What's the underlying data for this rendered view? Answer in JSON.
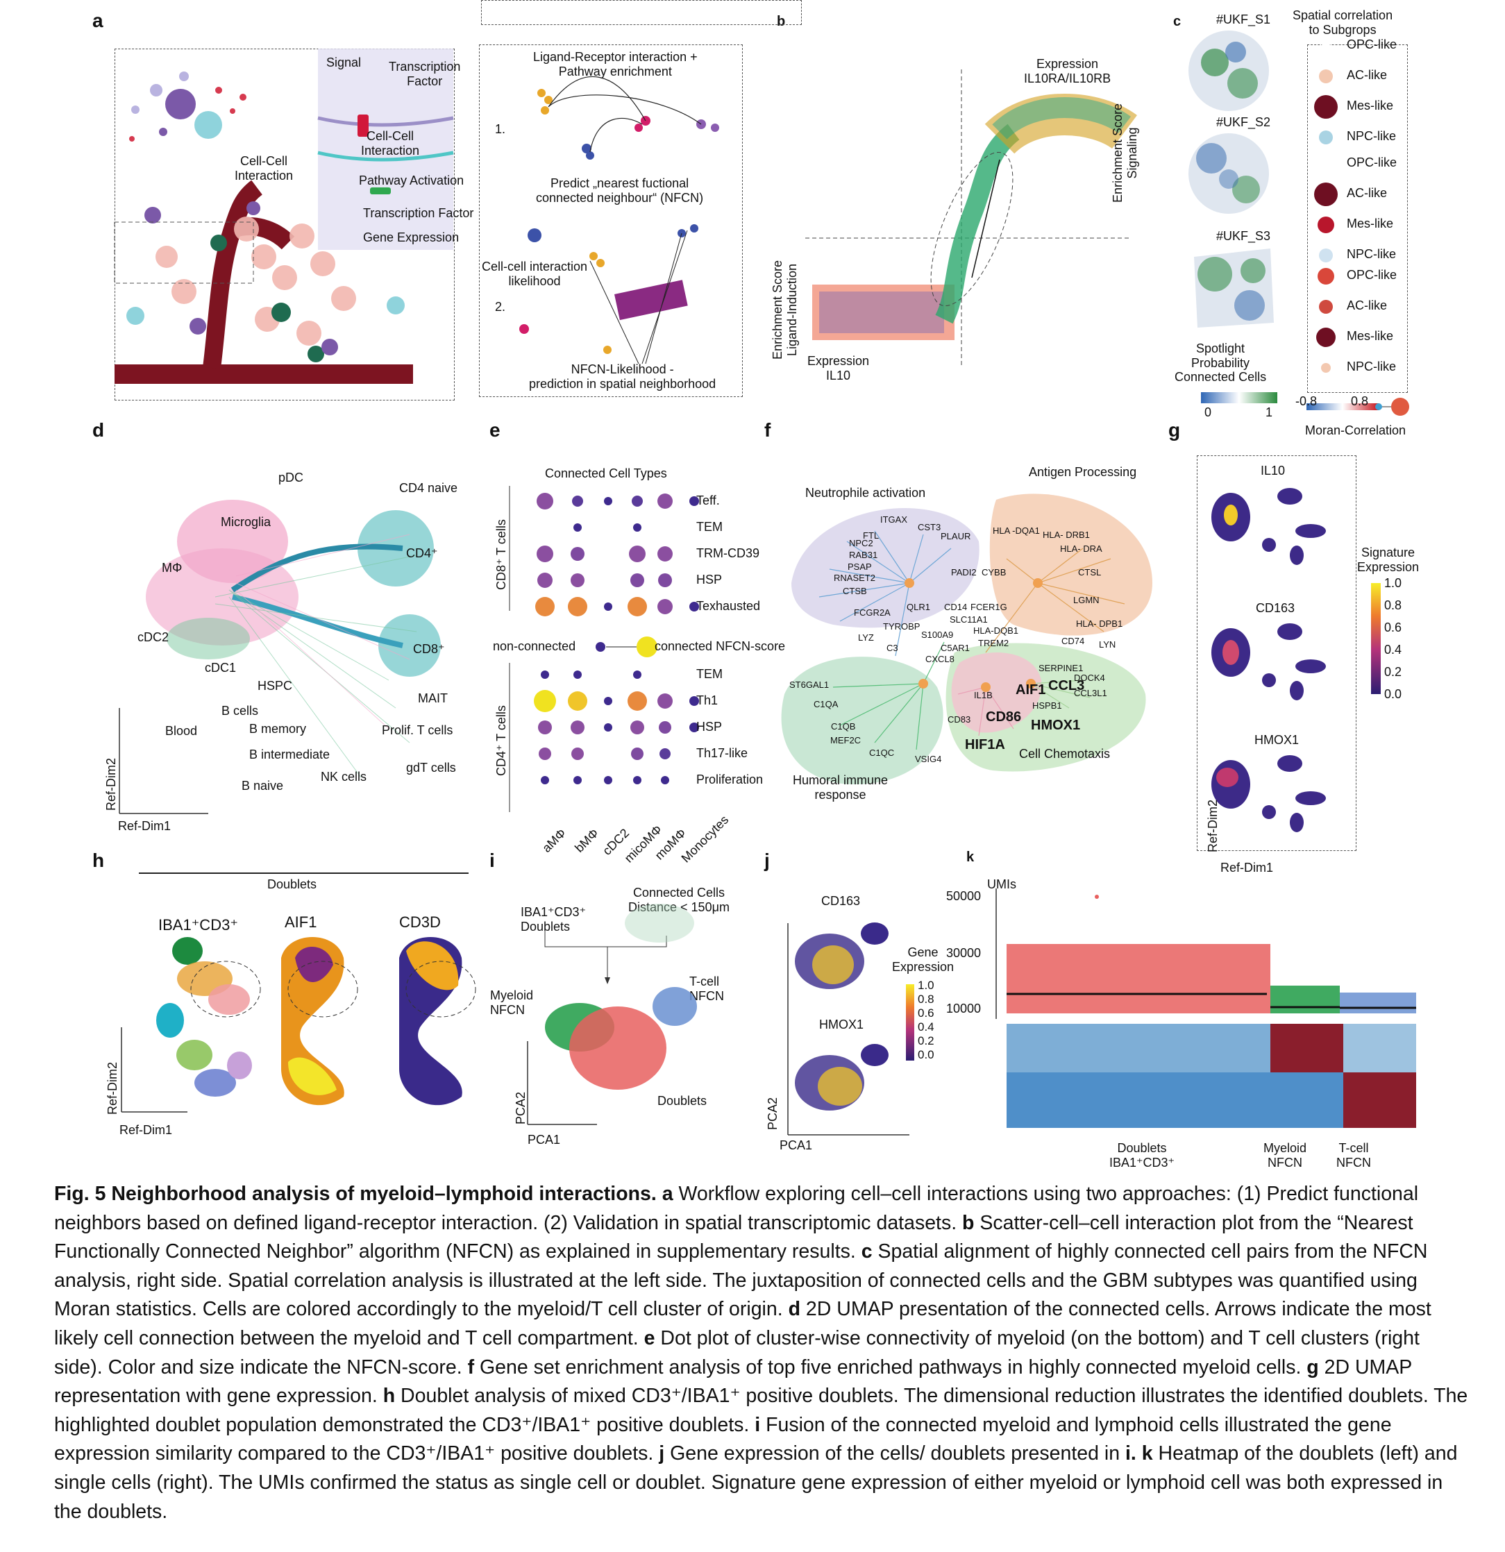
{
  "panel_letters": {
    "a": "a",
    "b": "b",
    "c": "c",
    "d": "d",
    "e": "e",
    "f": "f",
    "g": "g",
    "h": "h",
    "i": "i",
    "j": "j",
    "k": "k"
  },
  "panel_a": {
    "signal": "Signal",
    "transcription_factor_1": "Transcription\nFactor",
    "cell_cell_interaction_inner": "Cell-Cell\nInteraction",
    "pathway_activation": "Pathway Activation",
    "transcription_factor_2": "Transcription Factor",
    "gene_expression": "Gene Expression",
    "cell_cell_interaction_left": "Cell-Cell\nInteraction",
    "lr_title": "Ligand-Receptor interaction +\nPathway enrichment",
    "step1": "1.",
    "predict": "Predict „nearest fuctional\nconnected neighbour“ (NFCN)",
    "likelihood": "Cell-cell interaction\nlikelihood",
    "step2": "2.",
    "nfcn_likelihood": "NFCN-Likelihood -\nprediction in spatial neighborhood"
  },
  "panel_b": {
    "expression_top": "Expression\nIL10RA/IL10RB",
    "enrichment_signaling": "Enrichment Score\nSignaling",
    "enrichment_ligand": "Enrichment Score\nLigand-Induction",
    "expression_il10": "Expression\nIL10"
  },
  "panel_c": {
    "samples": [
      "#UKF_S1",
      "#UKF_S2",
      "#UKF_S3"
    ],
    "legend_title": "Spatial correlation\nto Subgrops",
    "groups": [
      {
        "items": [
          {
            "label": "OPC-like",
            "color": "#ffffff"
          },
          {
            "label": "AC-like",
            "color": "#f3c8b0"
          },
          {
            "label": "Mes-like",
            "color": "#6e0f22"
          },
          {
            "label": "NPC-like",
            "color": "#a9d3e3"
          }
        ]
      },
      {
        "items": [
          {
            "label": "OPC-like",
            "color": "#ffffff"
          },
          {
            "label": "AC-like",
            "color": "#6e0f22"
          },
          {
            "label": "Mes-like",
            "color": "#b8162c"
          },
          {
            "label": "NPC-like",
            "color": "#cfe2f0"
          }
        ]
      },
      {
        "items": [
          {
            "label": "OPC-like",
            "color": "#d9473a"
          },
          {
            "label": "AC-like",
            "color": "#cf4a3f"
          },
          {
            "label": "Mes-like",
            "color": "#6e0f22"
          },
          {
            "label": "NPC-like",
            "color": "#f3c8b0"
          }
        ]
      }
    ],
    "spotlight": "Spotlight\nProbability\nConnected Cells",
    "scale_min": "0",
    "scale_max": "1",
    "moran_min": "-0.8",
    "moran_max": "0.8",
    "moran_label": "Moran-Correlation"
  },
  "panel_d": {
    "labels": {
      "pDC": "pDC",
      "cd4_naive": "CD4 naive",
      "microglia": "Microglia",
      "mphi": "MΦ",
      "cd4": "CD4⁺",
      "cd8": "CD8⁺",
      "cdc2": "cDC2",
      "cdc1": "cDC1",
      "hspc": "HSPC",
      "mait": "MAIT",
      "b_cells": "B cells",
      "blood": "Blood",
      "b_memory": "B memory",
      "prolif": "Prolif. T cells",
      "b_intermediate": "B intermediate",
      "gdt": "gdT cells",
      "nk": "NK cells",
      "b_naive": "B naive"
    },
    "axis_x": "Ref-Dim1",
    "axis_y": "Ref-Dim2"
  },
  "panel_e": {
    "title": "Connected Cell Types",
    "cd8_group": "CD8⁺ T cells",
    "cd4_group": "CD4⁺ T cells",
    "legend_left": "non-connected",
    "legend_right": "connected NFCN-score",
    "columns": [
      "aMΦ",
      "bMΦ",
      "cDC2",
      "micoMΦ",
      "moMΦ",
      "Monocytes"
    ]
  },
  "panel_f": {
    "neutrophile": "Neutrophile activation",
    "antigen": "Antigen Processing",
    "humoral": "Humoral immune\nresponse",
    "chemotaxis": "Cell Chemotaxis",
    "genes_small": [
      "ITGAX",
      "CST3",
      "FTL",
      "NPC2",
      "PLAUR",
      "RAB31",
      "PSAP",
      "RNASET2",
      "CTSB",
      "FCGR2A",
      "PADI2",
      "CYBB",
      "HLA -DQA1",
      "HLA- DRB1",
      "HLA- DRA",
      "CTSL",
      "LGMN",
      "HLA- DPB1",
      "CD74",
      "LYN",
      "QLR1",
      "CD14",
      "FCER1G",
      "SLC11A1",
      "HLA-DQB1",
      "TYROBP",
      "S100A9",
      "TREM2",
      "C5AR1",
      "LYZ",
      "C3",
      "CXCL8",
      "ST6GAL1",
      "C1QA",
      "IL1B",
      "SERPINE1",
      "DOCK4",
      "CCL3L1",
      "HSPB1",
      "CD83",
      "C1QB",
      "MEF2C",
      "C1QC",
      "VSIG4"
    ],
    "genes_bold": [
      "AIF1",
      "CCL3",
      "CD86",
      "HMOX1",
      "HIF1A"
    ]
  },
  "panel_g": {
    "genes": [
      "IL10",
      "CD163",
      "HMOX1"
    ],
    "legend_title": "Signature\nExpression",
    "ticks": [
      "1.0",
      "0.8",
      "0.6",
      "0.4",
      "0.2",
      "0.0"
    ],
    "axis_x": "Ref-Dim1",
    "axis_y": "Ref-Dim2"
  },
  "panel_h": {
    "doublets": "Doublets",
    "titles": [
      "IBA1⁺CD3⁺",
      "AIF1",
      "CD3D"
    ],
    "axis_x": "Ref-Dim1",
    "axis_y": "Ref-Dim2"
  },
  "panel_i": {
    "connected": "Connected Cells\nDistance < 150μm",
    "doublet_label": "IBA1⁺CD3⁺\nDoublets",
    "myeloid": "Myeloid\nNFCN",
    "tcell": "T-cell\nNFCN",
    "doublets": "Doublets",
    "axis_x": "PCA1",
    "axis_y": "PCA2"
  },
  "panel_j": {
    "genes": [
      "CD163",
      "HMOX1"
    ],
    "legend_title": "Gene\nExpression",
    "ticks": [
      "1.0",
      "0.8",
      "0.6",
      "0.4",
      "0.2",
      "0.0"
    ],
    "axis_x": "PCA1",
    "axis_y": "PCA2"
  },
  "panel_k": {
    "umis": "UMIs",
    "yticks": [
      "50000",
      "30000",
      "10000"
    ],
    "groups": [
      "Doublets\nIBA1⁺CD3⁺",
      "Myeloid\nNFCN",
      "T-cell\nNFCN"
    ]
  },
  "caption": {
    "title": "Fig. 5 Neighborhood analysis of myeloid–lymphoid interactions.",
    "segments": [
      {
        "tag": "a",
        "text": "Workflow exploring cell–cell interactions using two approaches: (1) Predict functional neighbors based on defined ligand-receptor interaction. (2) Validation in spatial transcriptomic datasets."
      },
      {
        "tag": "b",
        "text": "Scatter-cell–cell interaction plot from the “Nearest Functionally Connected Neighbor” algorithm (NFCN) as explained in supplementary results."
      },
      {
        "tag": "c",
        "text": "Spatial alignment of highly connected cell pairs from the NFCN analysis, right side. Spatial correlation analysis is illustrated at the left side. The juxtaposition of connected cells and the GBM subtypes was quantified using Moran statistics. Cells are colored accordingly to the myeloid/T cell cluster of origin."
      },
      {
        "tag": "d",
        "text": "2D UMAP presentation of the connected cells. Arrows indicate the most likely cell connection between the myeloid and T cell compartment."
      },
      {
        "tag": "e",
        "text": "Dot plot of cluster-wise connectivity of myeloid (on the bottom) and T cell clusters (right side). Color and size indicate the NFCN-score."
      },
      {
        "tag": "f",
        "text": "Gene set enrichment analysis of top five enriched pathways in highly connected myeloid cells."
      },
      {
        "tag": "g",
        "text": "2D UMAP representation with gene expression."
      },
      {
        "tag": "h",
        "text": "Doublet analysis of mixed CD3⁺/IBA1⁺ positive doublets. The dimensional reduction illustrates the identified doublets. The highlighted doublet population demonstrated the CD3⁺/IBA1⁺ positive doublets."
      },
      {
        "tag": "i",
        "text": "Fusion of the connected myeloid and lymphoid cells illustrated the gene expression similarity compared to the CD3⁺/IBA1⁺ positive doublets."
      },
      {
        "tag": "j",
        "text": "Gene expression of the cells/ doublets presented in"
      },
      {
        "tag": "i.",
        "text": ""
      },
      {
        "tag": "k",
        "text": "Heatmap of the doublets (left) and single cells (right). The UMIs confirmed the status as single cell or doublet. Signature gene expression of either myeloid or lymphoid cell was both expressed in the doublets."
      }
    ]
  }
}
